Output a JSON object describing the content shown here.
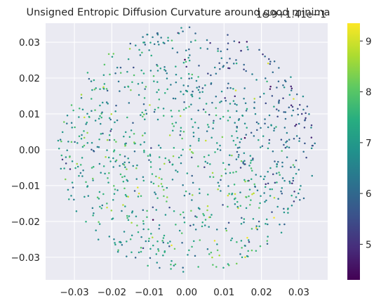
{
  "chart_data": {
    "type": "scatter",
    "title": "Unsigned Entropic Diffusion Curvature around good minima",
    "offset_text": "1e-9+1.41e−1",
    "xlabel": "",
    "ylabel": "",
    "xlim": [
      -0.0377,
      0.0377
    ],
    "ylim": [
      -0.0363,
      0.0353
    ],
    "x_ticks": [
      -0.03,
      -0.02,
      -0.01,
      0.0,
      0.01,
      0.02,
      0.03
    ],
    "x_tick_labels": [
      "−0.03",
      "−0.02",
      "−0.01",
      "0.00",
      "0.01",
      "0.02",
      "0.03"
    ],
    "y_ticks": [
      -0.03,
      -0.02,
      -0.01,
      0.0,
      0.01,
      0.02,
      0.03
    ],
    "y_tick_labels": [
      "−0.03",
      "−0.02",
      "−0.01",
      "0.00",
      "0.01",
      "0.02",
      "0.03"
    ],
    "grid": true,
    "background": "#eaeaf2",
    "colormap": "viridis",
    "colorbar": {
      "range": [
        4.3,
        9.35
      ],
      "ticks": [
        5,
        6,
        7,
        8,
        9
      ],
      "tick_labels": [
        "5",
        "6",
        "7",
        "8",
        "9"
      ]
    },
    "points": {
      "count": 1000,
      "support": "disk",
      "center": [
        0.0,
        0.0
      ],
      "radius": 0.0345,
      "value_range": [
        4.3,
        9.35
      ],
      "typical_value": 7.2,
      "lower_values_toward": "upper-right"
    }
  }
}
